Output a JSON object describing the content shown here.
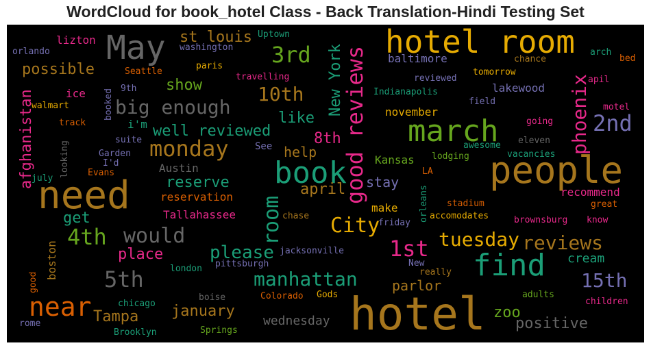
{
  "title": "WordCloud for book_hotel Class - Back Translation-Hindi Testing Set",
  "palette": {
    "background": "#000000",
    "teal": "#1B9E77",
    "orange": "#D95F02",
    "purple": "#7570B3",
    "pink": "#E7298A",
    "green": "#66A61E",
    "gold": "#E6AB02",
    "brown": "#A6761D",
    "gray": "#666666"
  },
  "words": [
    {
      "text": "hotel",
      "color": "#A6761D"
    },
    {
      "text": "need",
      "color": "#A6761D"
    },
    {
      "text": "people",
      "color": "#A6761D"
    },
    {
      "text": "hotel room",
      "color": "#E6AB02"
    },
    {
      "text": "May",
      "color": "#666666"
    },
    {
      "text": "march",
      "color": "#66A61E"
    },
    {
      "text": "book",
      "color": "#1B9E77"
    },
    {
      "text": "good reviews",
      "color": "#E7298A"
    },
    {
      "text": "find",
      "color": "#1B9E77"
    },
    {
      "text": "near",
      "color": "#D95F02"
    },
    {
      "text": "monday",
      "color": "#A6761D"
    },
    {
      "text": "3rd",
      "color": "#66A61E"
    },
    {
      "text": "2nd",
      "color": "#7570B3"
    },
    {
      "text": "phoenix",
      "color": "#E7298A"
    },
    {
      "text": "big enough",
      "color": "#666666"
    },
    {
      "text": "4th",
      "color": "#66A61E"
    },
    {
      "text": "would",
      "color": "#666666"
    },
    {
      "text": "5th",
      "color": "#666666"
    },
    {
      "text": "room",
      "color": "#1B9E77"
    },
    {
      "text": "City",
      "color": "#E6AB02"
    },
    {
      "text": "1st",
      "color": "#E7298A"
    },
    {
      "text": "tuesday",
      "color": "#E6AB02"
    },
    {
      "text": "reviews",
      "color": "#A6761D"
    },
    {
      "text": "manhattan",
      "color": "#1B9E77"
    },
    {
      "text": "15th",
      "color": "#7570B3"
    },
    {
      "text": "New York",
      "color": "#1B9E77"
    },
    {
      "text": "10th",
      "color": "#A6761D"
    },
    {
      "text": "well reviewed",
      "color": "#1B9E77"
    },
    {
      "text": "please",
      "color": "#1B9E77"
    },
    {
      "text": "april",
      "color": "#A6761D"
    },
    {
      "text": "reserve",
      "color": "#1B9E77"
    },
    {
      "text": "possible",
      "color": "#A6761D"
    },
    {
      "text": "st louis",
      "color": "#A6761D"
    },
    {
      "text": "afghanistan",
      "color": "#E7298A"
    },
    {
      "text": "show",
      "color": "#66A61E"
    },
    {
      "text": "like",
      "color": "#1B9E77"
    },
    {
      "text": "8th",
      "color": "#E7298A"
    },
    {
      "text": "help",
      "color": "#A6761D"
    },
    {
      "text": "stay",
      "color": "#7570B3"
    },
    {
      "text": "Tampa",
      "color": "#A6761D"
    },
    {
      "text": "january",
      "color": "#A6761D"
    },
    {
      "text": "place",
      "color": "#E7298A"
    },
    {
      "text": "get",
      "color": "#1B9E77"
    },
    {
      "text": "zoo",
      "color": "#66A61E"
    },
    {
      "text": "positive",
      "color": "#666666"
    },
    {
      "text": "parlor",
      "color": "#A6761D"
    },
    {
      "text": "cream",
      "color": "#1B9E77"
    },
    {
      "text": "wednesday",
      "color": "#666666"
    },
    {
      "text": "lizton",
      "color": "#E7298A"
    },
    {
      "text": "baltimore",
      "color": "#7570B3"
    },
    {
      "text": "lakewood",
      "color": "#7570B3"
    },
    {
      "text": "november",
      "color": "#E6AB02"
    },
    {
      "text": "Kansas",
      "color": "#66A61E"
    },
    {
      "text": "make",
      "color": "#E6AB02"
    },
    {
      "text": "Austin",
      "color": "#666666"
    },
    {
      "text": "reservation",
      "color": "#D95F02"
    },
    {
      "text": "Tallahassee",
      "color": "#E7298A"
    },
    {
      "text": "recommend",
      "color": "#E7298A"
    },
    {
      "text": "ice",
      "color": "#E7298A"
    },
    {
      "text": "i'm",
      "color": "#1B9E77"
    },
    {
      "text": "boston",
      "color": "#A6761D"
    },
    {
      "text": "See",
      "color": "#7570B3"
    },
    {
      "text": "Uptown",
      "color": "#1B9E77"
    },
    {
      "text": "washington",
      "color": "#7570B3"
    },
    {
      "text": "orlando",
      "color": "#7570B3"
    },
    {
      "text": "Seattle",
      "color": "#D95F02"
    },
    {
      "text": "paris",
      "color": "#E6AB02"
    },
    {
      "text": "travelling",
      "color": "#E7298A"
    },
    {
      "text": "9th",
      "color": "#7570B3"
    },
    {
      "text": "walmart",
      "color": "#E6AB02"
    },
    {
      "text": "booked",
      "color": "#7570B3"
    },
    {
      "text": "track",
      "color": "#D95F02"
    },
    {
      "text": "suite",
      "color": "#7570B3"
    },
    {
      "text": "looking",
      "color": "#666666"
    },
    {
      "text": "Garden",
      "color": "#7570B3"
    },
    {
      "text": "I'd",
      "color": "#7570B3"
    },
    {
      "text": "Evans",
      "color": "#D95F02"
    },
    {
      "text": "july",
      "color": "#1B9E77"
    },
    {
      "text": "chance",
      "color": "#A6761D"
    },
    {
      "text": "eleven",
      "color": "#666666"
    },
    {
      "text": "arch",
      "color": "#1B9E77"
    },
    {
      "text": "bed",
      "color": "#D95F02"
    },
    {
      "text": "tomorrow",
      "color": "#E6AB02"
    },
    {
      "text": "reviewed",
      "color": "#7570B3"
    },
    {
      "text": "apil",
      "color": "#E7298A"
    },
    {
      "text": "Indianapolis",
      "color": "#1B9E77"
    },
    {
      "text": "field",
      "color": "#7570B3"
    },
    {
      "text": "motel",
      "color": "#E7298A"
    },
    {
      "text": "going",
      "color": "#E7298A"
    },
    {
      "text": "awesome",
      "color": "#1B9E77"
    },
    {
      "text": "lodging",
      "color": "#66A61E"
    },
    {
      "text": "vacancies",
      "color": "#1B9E77"
    },
    {
      "text": "LA",
      "color": "#D95F02"
    },
    {
      "text": "orleans",
      "color": "#1B9E77"
    },
    {
      "text": "stadium",
      "color": "#D95F02"
    },
    {
      "text": "great",
      "color": "#D95F02"
    },
    {
      "text": "friday",
      "color": "#7570B3"
    },
    {
      "text": "accomodates",
      "color": "#E6AB02"
    },
    {
      "text": "brownsburg",
      "color": "#E7298A"
    },
    {
      "text": "know",
      "color": "#E7298A"
    },
    {
      "text": "chase",
      "color": "#A6761D"
    },
    {
      "text": "jacksonville",
      "color": "#7570B3"
    },
    {
      "text": "pittsburgh",
      "color": "#7570B3"
    },
    {
      "text": "london",
      "color": "#1B9E77"
    },
    {
      "text": "New",
      "color": "#7570B3"
    },
    {
      "text": "really",
      "color": "#A6761D"
    },
    {
      "text": "good",
      "color": "#D95F02"
    },
    {
      "text": "boise",
      "color": "#666666"
    },
    {
      "text": "chicago",
      "color": "#1B9E77"
    },
    {
      "text": "Colorado",
      "color": "#D95F02"
    },
    {
      "text": "Gods",
      "color": "#E6AB02"
    },
    {
      "text": "adults",
      "color": "#66A61E"
    },
    {
      "text": "children",
      "color": "#E7298A"
    },
    {
      "text": "rome",
      "color": "#7570B3"
    },
    {
      "text": "Brooklyn",
      "color": "#1B9E77"
    },
    {
      "text": "Springs",
      "color": "#66A61E"
    }
  ]
}
